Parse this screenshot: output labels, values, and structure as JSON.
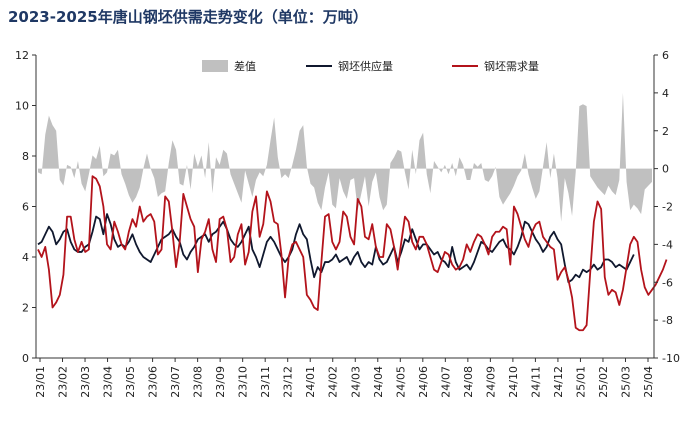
{
  "chart_data": {
    "type": "line",
    "title": "2023-2025年唐山钢坯供需走势变化（单位：万吨）",
    "legend_position": "top-center",
    "grid": false,
    "y_left": {
      "range": [
        0,
        12
      ],
      "ticks": [
        "0",
        "2",
        "4",
        "6",
        "8",
        "10",
        "12"
      ]
    },
    "y_right": {
      "range": [
        -10,
        6
      ],
      "ticks": [
        "-10",
        "-8",
        "-6",
        "-4",
        "-2",
        "0",
        "2",
        "4",
        "6"
      ]
    },
    "x_tick_labels": [
      "23/01",
      "23/02",
      "23/03",
      "23/04",
      "23/05",
      "23/06",
      "23/07",
      "23/08",
      "23/09",
      "23/10",
      "23/11",
      "23/12",
      "24/01",
      "24/02",
      "24/03",
      "24/04",
      "24/05",
      "24/06",
      "24/07",
      "24/08",
      "24/09",
      "24/10",
      "24/11",
      "24/12",
      "25/01",
      "25/02",
      "25/03",
      "25/04"
    ],
    "series": [
      {
        "name": "差值",
        "axis": "right",
        "style": "area",
        "color": "#c0c0c0",
        "values": [
          -0.2,
          -0.3,
          1.8,
          2.8,
          2.3,
          2.0,
          -0.6,
          -0.9,
          0.2,
          0.1,
          -0.5,
          0.4,
          -0.8,
          -1.2,
          -0.3,
          0.7,
          0.5,
          1.2,
          -0.4,
          -0.2,
          0.8,
          0.7,
          1.0,
          -0.3,
          -0.8,
          -1.4,
          -1.8,
          -1.5,
          -1.0,
          0.0,
          0.8,
          0.0,
          -0.5,
          -1.5,
          -1.3,
          -1.2,
          0.3,
          1.5,
          1.0,
          -0.8,
          -0.9,
          0.2,
          -1.1,
          0.8,
          0.1,
          0.7,
          -0.5,
          1.4,
          -1.3,
          0.6,
          0.2,
          1.0,
          0.8,
          -0.3,
          -0.8,
          -1.3,
          -1.8,
          -0.1,
          -0.8,
          -1.5,
          -0.6,
          -0.2,
          -0.4,
          0.2,
          1.5,
          2.7,
          0.6,
          -0.5,
          -0.3,
          -0.5,
          0.2,
          1.0,
          2.0,
          2.3,
          0.1,
          -0.8,
          -1.0,
          -1.8,
          -2.2,
          -1.0,
          -0.2,
          -1.9,
          -2.1,
          -0.5,
          -1.2,
          -1.6,
          -0.6,
          -0.5,
          -2.2,
          -1.3,
          -0.4,
          -2.0,
          -0.7,
          -0.2,
          -1.5,
          -2.2,
          -1.9,
          0.3,
          0.6,
          1.0,
          0.9,
          -0.2,
          -1.1,
          1.0,
          -0.3,
          1.5,
          1.9,
          -0.3,
          -1.3,
          0.4,
          0.1,
          -0.2,
          0.2,
          -0.3,
          0.3,
          -0.4,
          0.6,
          0.2,
          -0.6,
          -0.6,
          0.3,
          0.1,
          0.3,
          -0.6,
          -0.7,
          -0.4,
          0.1,
          -1.5,
          -1.9,
          -1.6,
          -1.3,
          -0.9,
          -0.4,
          -0.1,
          0.8,
          -0.3,
          -1.0,
          -1.6,
          -1.2,
          0.1,
          1.4,
          -0.5,
          0.8,
          -0.5,
          -2.8,
          -0.5,
          -1.3,
          -2.5,
          -0.2,
          3.3,
          3.4,
          3.3,
          -0.4,
          -0.7,
          -1.0,
          -1.2,
          -1.4,
          -0.9,
          -1.2,
          -1.4,
          -0.6,
          4.0,
          -0.7,
          -2.2,
          -1.9,
          -2.1,
          -2.4,
          -1.1,
          -0.9,
          -0.7
        ]
      },
      {
        "name": "钢坯供应量",
        "axis": "left",
        "style": "line",
        "color": "#10182e",
        "values": [
          4.5,
          4.6,
          4.9,
          5.2,
          5.0,
          4.5,
          4.7,
          5.0,
          5.1,
          4.6,
          4.3,
          4.2,
          4.2,
          4.4,
          4.5,
          5.0,
          5.6,
          5.5,
          4.9,
          5.7,
          5.3,
          4.7,
          4.4,
          4.5,
          4.4,
          4.6,
          4.9,
          4.5,
          4.2,
          4.0,
          3.9,
          3.8,
          4.1,
          4.4,
          4.7,
          4.8,
          4.9,
          5.1,
          4.8,
          4.6,
          4.1,
          3.9,
          4.2,
          4.4,
          4.7,
          4.8,
          4.9,
          4.6,
          4.9,
          5.0,
          5.2,
          5.4,
          5.1,
          4.7,
          4.5,
          4.4,
          4.6,
          4.9,
          5.2,
          4.3,
          4.0,
          3.6,
          4.1,
          4.6,
          4.8,
          4.6,
          4.3,
          4.0,
          3.8,
          4.0,
          4.3,
          4.9,
          5.3,
          4.9,
          4.7,
          3.9,
          3.2,
          3.6,
          3.4,
          3.8,
          3.8,
          3.9,
          4.1,
          3.8,
          3.9,
          4.0,
          3.7,
          4.0,
          4.2,
          3.8,
          3.6,
          3.8,
          3.7,
          4.4,
          3.9,
          3.7,
          3.8,
          4.1,
          4.4,
          3.8,
          4.2,
          4.7,
          4.6,
          5.1,
          4.7,
          4.3,
          4.5,
          4.5,
          4.3,
          4.1,
          4.2,
          3.9,
          3.8,
          3.6,
          4.4,
          3.8,
          3.5,
          3.6,
          3.7,
          3.5,
          3.8,
          4.2,
          4.6,
          4.5,
          4.3,
          4.2,
          4.4,
          4.6,
          4.7,
          4.4,
          4.3,
          4.1,
          4.4,
          4.8,
          5.4,
          5.3,
          5.0,
          4.7,
          4.5,
          4.2,
          4.4,
          4.8,
          5.0,
          4.7,
          4.5,
          3.7,
          3.0,
          3.1,
          3.3,
          3.2,
          3.5,
          3.4,
          3.5,
          3.7,
          3.5,
          3.6,
          3.9,
          3.9,
          3.8,
          3.6,
          3.7,
          3.6,
          3.5,
          3.8,
          4.1
        ]
      },
      {
        "name": "钢坯需求量",
        "axis": "left",
        "style": "line",
        "color": "#b3131b",
        "values": [
          4.3,
          4.0,
          4.4,
          3.5,
          2.0,
          2.2,
          2.5,
          3.3,
          5.6,
          5.6,
          4.7,
          4.2,
          4.6,
          4.2,
          4.3,
          7.2,
          7.1,
          6.8,
          6.0,
          4.5,
          4.3,
          5.4,
          5.0,
          4.5,
          4.3,
          5.0,
          5.5,
          5.2,
          6.0,
          5.4,
          5.6,
          5.7,
          5.4,
          4.1,
          4.3,
          6.4,
          6.2,
          5.0,
          3.6,
          4.6,
          6.5,
          6.0,
          5.5,
          5.2,
          3.4,
          4.7,
          5.0,
          5.5,
          4.3,
          3.8,
          5.5,
          5.6,
          5.1,
          3.8,
          4.0,
          4.9,
          5.3,
          3.7,
          4.2,
          5.8,
          6.4,
          4.8,
          5.3,
          6.6,
          6.2,
          5.4,
          5.3,
          4.1,
          2.4,
          4.0,
          4.5,
          4.6,
          4.3,
          4.0,
          2.5,
          2.3,
          2.0,
          1.9,
          3.8,
          5.6,
          5.7,
          4.6,
          4.3,
          4.6,
          5.8,
          5.6,
          4.8,
          4.5,
          6.3,
          6.0,
          4.8,
          4.7,
          5.3,
          4.4,
          4.0,
          4.0,
          5.3,
          5.1,
          4.4,
          3.5,
          4.6,
          5.6,
          5.4,
          4.6,
          4.3,
          4.8,
          4.8,
          4.5,
          4.0,
          3.5,
          3.4,
          3.8,
          4.2,
          4.1,
          3.7,
          3.5,
          3.6,
          3.9,
          4.5,
          4.2,
          4.6,
          4.9,
          4.8,
          4.5,
          4.1,
          4.8,
          5.0,
          5.0,
          5.2,
          5.1,
          3.7,
          6.0,
          5.7,
          5.2,
          4.7,
          4.4,
          5.0,
          5.3,
          5.4,
          4.8,
          4.6,
          4.4,
          4.3,
          3.1,
          3.4,
          3.6,
          3.1,
          2.4,
          1.2,
          1.1,
          1.1,
          1.3,
          3.4,
          5.4,
          6.2,
          5.9,
          3.2,
          2.5,
          2.7,
          2.6,
          2.1,
          2.7,
          3.6,
          4.5,
          4.8,
          4.6,
          3.5,
          2.8,
          2.5,
          2.7,
          2.9,
          3.2,
          3.5,
          3.9
        ]
      }
    ]
  }
}
